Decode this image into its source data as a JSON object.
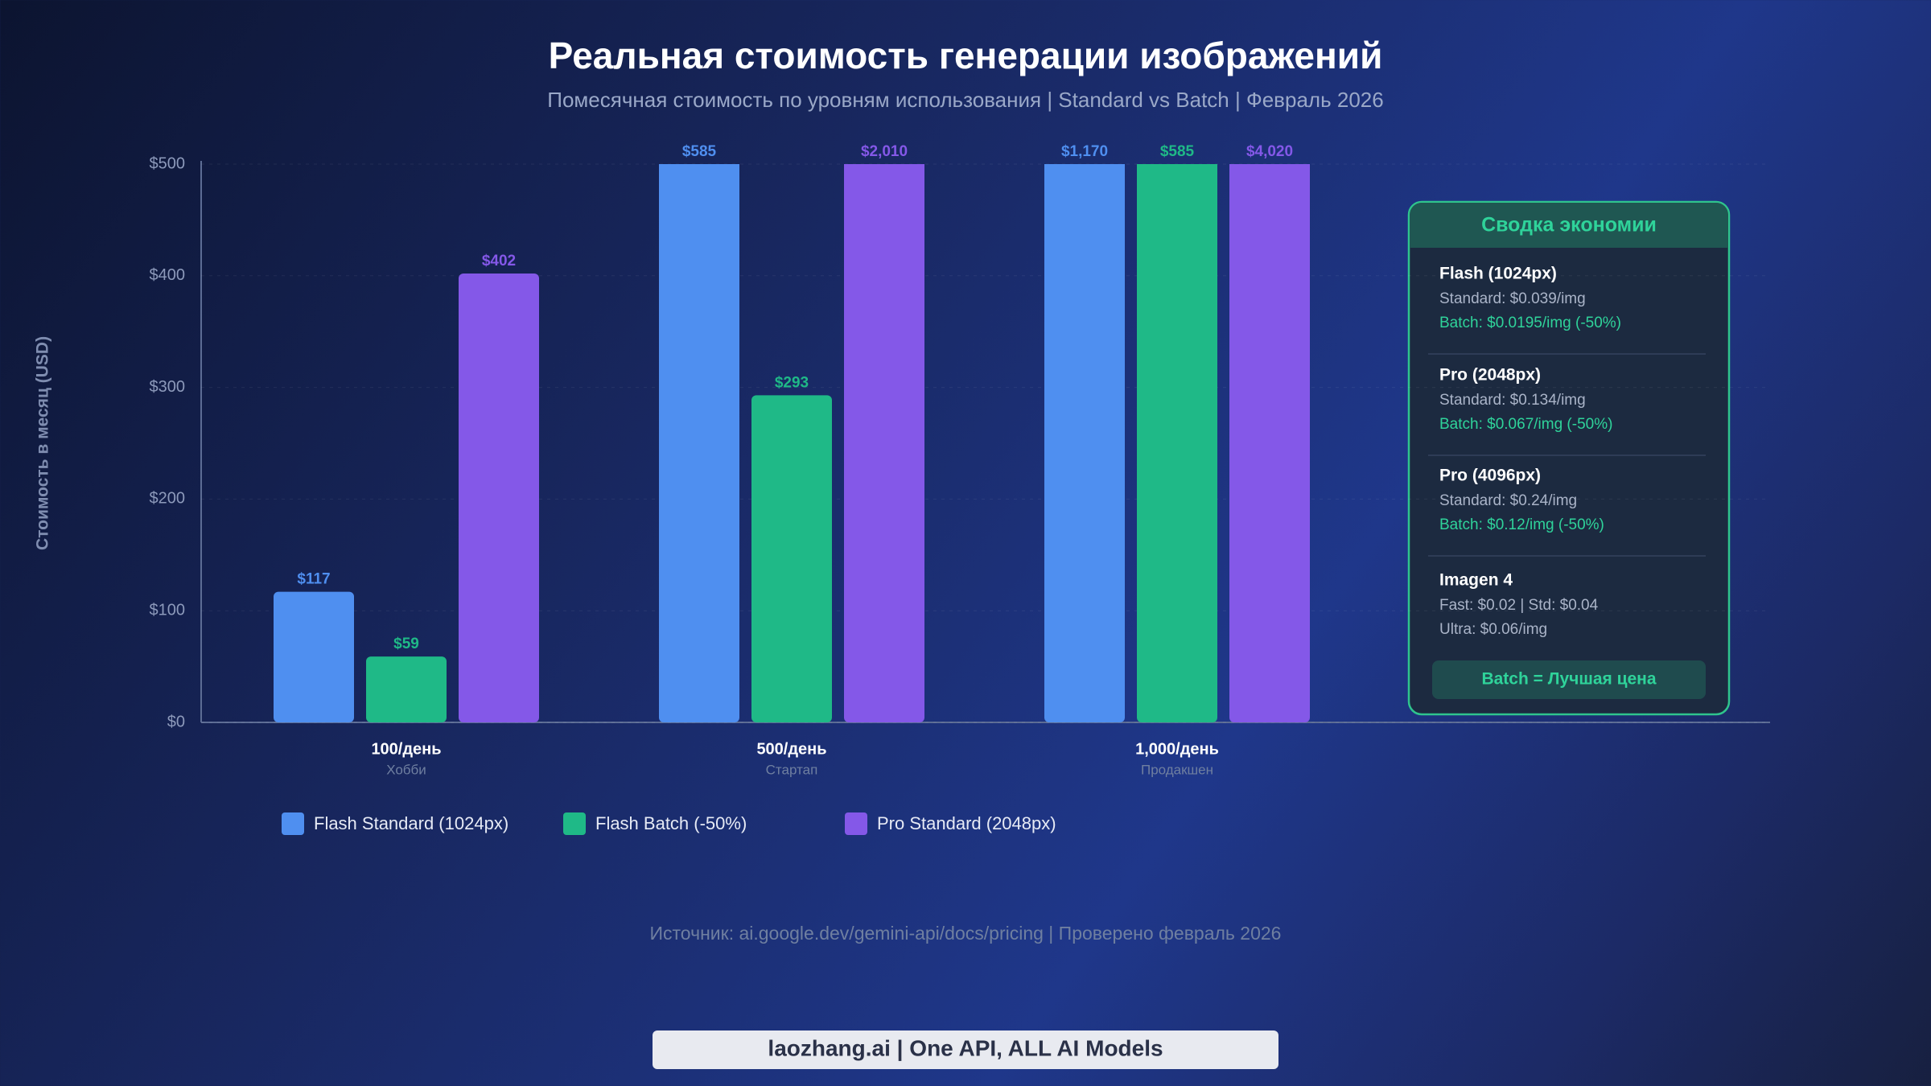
{
  "chart_data": {
    "type": "bar",
    "title": "Реальная стоимость генерации изображений",
    "subtitle": "Помесячная стоимость по уровням использования | Standard vs Batch | Февраль 2026",
    "y_label": "Стоимость в месяц (USD)",
    "categories": [
      "100/день",
      "500/день",
      "1,000/день"
    ],
    "category_notes": [
      "Хобби",
      "Стартап",
      "Продакшен"
    ],
    "series": [
      {
        "name": "Flash Standard (1024px)",
        "color": "#4f8ff0",
        "values": [
          117,
          585,
          1170
        ],
        "value_labels": [
          "$117",
          "$585",
          "$1,170"
        ]
      },
      {
        "name": "Flash Batch (-50%)",
        "color": "#1fb987",
        "values": [
          59,
          293,
          585
        ],
        "value_labels": [
          "$59",
          "$293",
          "$585"
        ]
      },
      {
        "name": "Pro Standard (2048px)",
        "color": "#8458e8",
        "values": [
          402,
          2010,
          4020
        ],
        "value_labels": [
          "$402",
          "$2,010",
          "$4,020"
        ]
      }
    ],
    "ylim": [
      0,
      500
    ],
    "yticks": [
      {
        "value": 0,
        "label": "$0"
      },
      {
        "value": 100,
        "label": "$100"
      },
      {
        "value": 200,
        "label": "$200"
      },
      {
        "value": 300,
        "label": "$300"
      },
      {
        "value": 400,
        "label": "$400"
      },
      {
        "value": 500,
        "label": "$500"
      }
    ],
    "grid": true,
    "legend": "bottom"
  },
  "summary": {
    "title": "Сводка экономии",
    "items": [
      {
        "name": "Flash (1024px)",
        "lines": [
          "Standard: $0.039/img",
          "Batch: $0.0195/img (-50%)"
        ]
      },
      {
        "name": "Pro (2048px)",
        "lines": [
          "Standard: $0.134/img",
          "Batch: $0.067/img (-50%)"
        ]
      },
      {
        "name": "Pro (4096px)",
        "lines": [
          "Standard: $0.24/img",
          "Batch: $0.12/img (-50%)"
        ]
      },
      {
        "name": "Imagen 4",
        "lines": [
          "Fast: $0.02 | Std: $0.04",
          "Ultra: $0.06/img"
        ]
      }
    ],
    "footer": "Batch = Лучшая цена"
  },
  "source": "Источник: ai.google.dev/gemini-api/docs/pricing | Проверено февраль 2026",
  "brand": "laozhang.ai | One API, ALL AI Models"
}
